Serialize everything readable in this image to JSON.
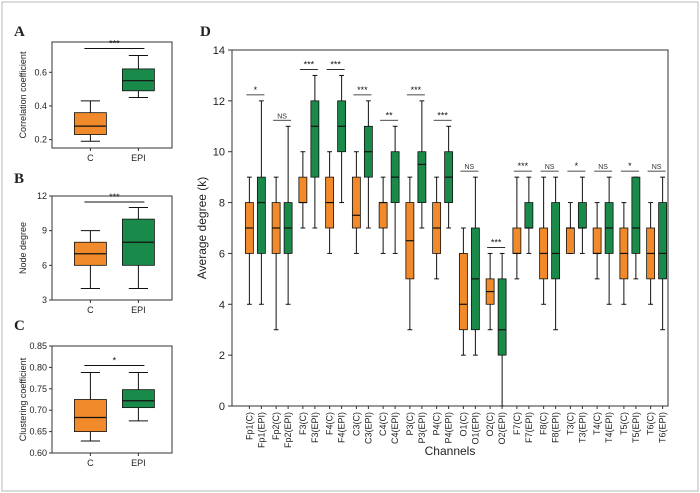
{
  "colors": {
    "C": "#f08a2a",
    "EPI": "#1a8a4a",
    "axis": "#333333",
    "frame": "#b9b9b9"
  },
  "chart_data": [
    {
      "panel": "A",
      "type": "box",
      "ylabel": "Correlation coefficient",
      "yticks": [
        0.2,
        0.4,
        0.6
      ],
      "ylim": [
        0.15,
        0.78
      ],
      "categories": [
        "C",
        "EPI"
      ],
      "boxes": [
        {
          "group": "C",
          "whisker_low": 0.19,
          "q1": 0.23,
          "median": 0.28,
          "q3": 0.36,
          "whisker_high": 0.43
        },
        {
          "group": "EPI",
          "whisker_low": 0.45,
          "q1": 0.49,
          "median": 0.55,
          "q3": 0.62,
          "whisker_high": 0.7
        }
      ],
      "significance": "***"
    },
    {
      "panel": "B",
      "type": "box",
      "ylabel": "Node degree",
      "yticks": [
        3,
        6,
        9,
        12
      ],
      "ylim": [
        3,
        12
      ],
      "categories": [
        "C",
        "EPI"
      ],
      "boxes": [
        {
          "group": "C",
          "whisker_low": 4,
          "q1": 6,
          "median": 7,
          "q3": 8,
          "whisker_high": 9
        },
        {
          "group": "EPI",
          "whisker_low": 4,
          "q1": 6,
          "median": 8,
          "q3": 10,
          "whisker_high": 11
        }
      ],
      "significance": "***"
    },
    {
      "panel": "C",
      "type": "box",
      "ylabel": "Clustering coefficient",
      "yticks": [
        0.6,
        0.65,
        0.7,
        0.75,
        0.8,
        0.85
      ],
      "ytick_labels": [
        "0.60",
        "0.65",
        "0.70",
        "0.75",
        "0.80",
        "0.85"
      ],
      "ylim": [
        0.6,
        0.85
      ],
      "categories": [
        "C",
        "EPI"
      ],
      "boxes": [
        {
          "group": "C",
          "whisker_low": 0.628,
          "q1": 0.65,
          "median": 0.683,
          "q3": 0.725,
          "whisker_high": 0.788
        },
        {
          "group": "EPI",
          "whisker_low": 0.675,
          "q1": 0.706,
          "median": 0.722,
          "q3": 0.748,
          "whisker_high": 0.788
        }
      ],
      "significance": "*"
    },
    {
      "panel": "D",
      "type": "box",
      "xlabel": "Channels",
      "ylabel": "Average degree (k)",
      "yticks": [
        0,
        2,
        4,
        6,
        8,
        10,
        12,
        14
      ],
      "ylim": [
        0,
        14
      ],
      "channels": [
        {
          "name": "Fp1",
          "sig": "*",
          "C": {
            "whisker_low": 4,
            "q1": 6,
            "median": 7,
            "q3": 8,
            "whisker_high": 9
          },
          "EPI": {
            "whisker_low": 4,
            "q1": 6,
            "median": 8,
            "q3": 9,
            "whisker_high": 12
          }
        },
        {
          "name": "Fp2",
          "sig": "NS",
          "C": {
            "whisker_low": 3,
            "q1": 6,
            "median": 7,
            "q3": 8,
            "whisker_high": 9
          },
          "EPI": {
            "whisker_low": 4,
            "q1": 6,
            "median": 7,
            "q3": 8,
            "whisker_high": 11
          }
        },
        {
          "name": "F3",
          "sig": "***",
          "C": {
            "whisker_low": 7,
            "q1": 8,
            "median": 8,
            "q3": 9,
            "whisker_high": 10
          },
          "EPI": {
            "whisker_low": 7,
            "q1": 9,
            "median": 11,
            "q3": 12,
            "whisker_high": 13
          }
        },
        {
          "name": "F4",
          "sig": "***",
          "C": {
            "whisker_low": 6,
            "q1": 7,
            "median": 8,
            "q3": 9,
            "whisker_high": 10
          },
          "EPI": {
            "whisker_low": 8,
            "q1": 10,
            "median": 11,
            "q3": 12,
            "whisker_high": 13
          }
        },
        {
          "name": "C3",
          "sig": "***",
          "C": {
            "whisker_low": 6,
            "q1": 7,
            "median": 7.5,
            "q3": 9,
            "whisker_high": 10
          },
          "EPI": {
            "whisker_low": 7,
            "q1": 9,
            "median": 10,
            "q3": 11,
            "whisker_high": 12
          }
        },
        {
          "name": "C4",
          "sig": "**",
          "C": {
            "whisker_low": 6,
            "q1": 7,
            "median": 8,
            "q3": 8,
            "whisker_high": 9
          },
          "EPI": {
            "whisker_low": 6,
            "q1": 8,
            "median": 9,
            "q3": 10,
            "whisker_high": 11
          }
        },
        {
          "name": "P3",
          "sig": "***",
          "C": {
            "whisker_low": 3,
            "q1": 5,
            "median": 6.5,
            "q3": 8,
            "whisker_high": 9
          },
          "EPI": {
            "whisker_low": 7,
            "q1": 8,
            "median": 9.5,
            "q3": 10,
            "whisker_high": 12
          }
        },
        {
          "name": "P4",
          "sig": "***",
          "C": {
            "whisker_low": 5,
            "q1": 6,
            "median": 7,
            "q3": 8,
            "whisker_high": 9
          },
          "EPI": {
            "whisker_low": 7,
            "q1": 8,
            "median": 9,
            "q3": 10,
            "whisker_high": 11
          }
        },
        {
          "name": "O1",
          "sig": "NS",
          "C": {
            "whisker_low": 2,
            "q1": 3,
            "median": 4,
            "q3": 6,
            "whisker_high": 7
          },
          "EPI": {
            "whisker_low": 2,
            "q1": 3,
            "median": 5,
            "q3": 7,
            "whisker_high": 9
          }
        },
        {
          "name": "O2",
          "sig": "***",
          "C": {
            "whisker_low": 3,
            "q1": 4,
            "median": 4.5,
            "q3": 5,
            "whisker_high": 6
          },
          "EPI": {
            "whisker_low": 0,
            "q1": 2,
            "median": 3,
            "q3": 5,
            "whisker_high": 6
          }
        },
        {
          "name": "F7",
          "sig": "***",
          "C": {
            "whisker_low": 5,
            "q1": 6,
            "median": 6,
            "q3": 7,
            "whisker_high": 9
          },
          "EPI": {
            "whisker_low": 6,
            "q1": 7,
            "median": 7,
            "q3": 8,
            "whisker_high": 9
          }
        },
        {
          "name": "F8",
          "sig": "NS",
          "C": {
            "whisker_low": 4,
            "q1": 5,
            "median": 6,
            "q3": 7,
            "whisker_high": 9
          },
          "EPI": {
            "whisker_low": 3,
            "q1": 5,
            "median": 6,
            "q3": 8,
            "whisker_high": 9
          }
        },
        {
          "name": "T3",
          "sig": "*",
          "C": {
            "whisker_low": 6,
            "q1": 6,
            "median": 7,
            "q3": 7,
            "whisker_high": 8
          },
          "EPI": {
            "whisker_low": 6,
            "q1": 7,
            "median": 7,
            "q3": 8,
            "whisker_high": 9
          }
        },
        {
          "name": "T4",
          "sig": "NS",
          "C": {
            "whisker_low": 5,
            "q1": 6,
            "median": 6,
            "q3": 7,
            "whisker_high": 8
          },
          "EPI": {
            "whisker_low": 4,
            "q1": 6,
            "median": 7,
            "q3": 8,
            "whisker_high": 9
          }
        },
        {
          "name": "T5",
          "sig": "*",
          "C": {
            "whisker_low": 4,
            "q1": 5,
            "median": 6,
            "q3": 7,
            "whisker_high": 8
          },
          "EPI": {
            "whisker_low": 5,
            "q1": 6,
            "median": 7,
            "q3": 9,
            "whisker_high": 9
          }
        },
        {
          "name": "T6",
          "sig": "NS",
          "C": {
            "whisker_low": 4,
            "q1": 5,
            "median": 6,
            "q3": 7,
            "whisker_high": 8
          },
          "EPI": {
            "whisker_low": 3,
            "q1": 5,
            "median": 6,
            "q3": 8,
            "whisker_high": 9
          }
        }
      ]
    }
  ]
}
